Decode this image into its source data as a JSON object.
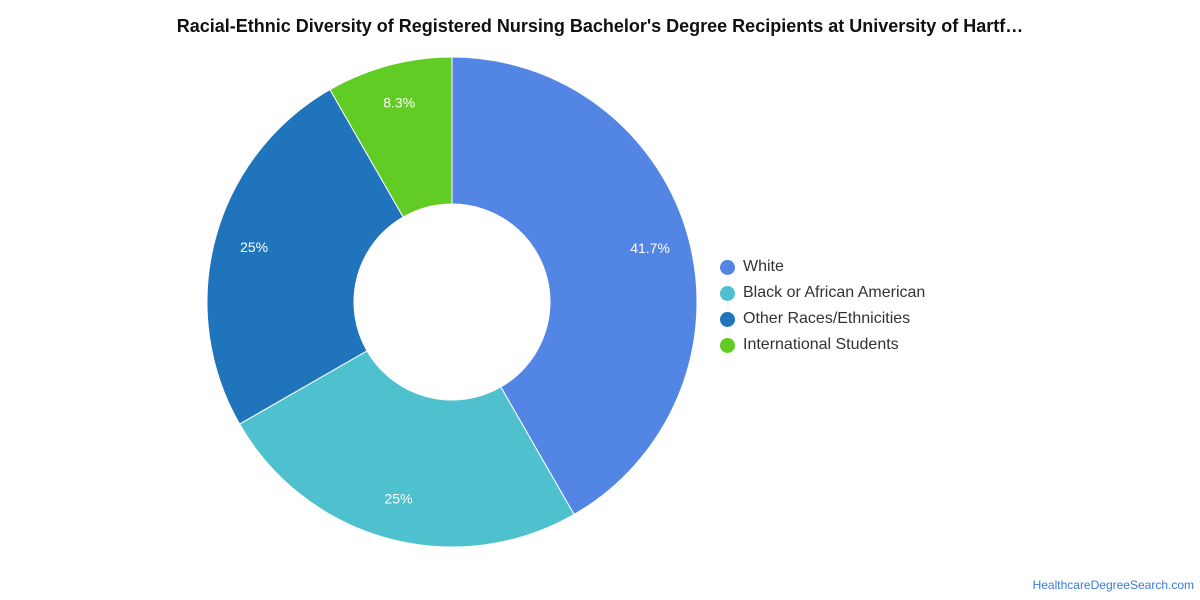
{
  "chart_data": {
    "type": "pie",
    "title": "Racial-Ethnic Diversity of Registered Nursing Bachelor's Degree Recipients at University of Hartf…",
    "donut": true,
    "slices": [
      {
        "label": "White",
        "value": 41.7,
        "display": "41.7%",
        "color": "#5386E4"
      },
      {
        "label": "Black or African American",
        "value": 25,
        "display": "25%",
        "color": "#4FC1CE"
      },
      {
        "label": "Other Races/Ethnicities",
        "value": 25,
        "display": "25%",
        "color": "#1F74BC"
      },
      {
        "label": "International Students",
        "value": 8.3,
        "display": "8.3%",
        "color": "#61CD24"
      }
    ],
    "legend_position": "right"
  },
  "source": {
    "label": "HealthcareDegreeSearch.com"
  }
}
